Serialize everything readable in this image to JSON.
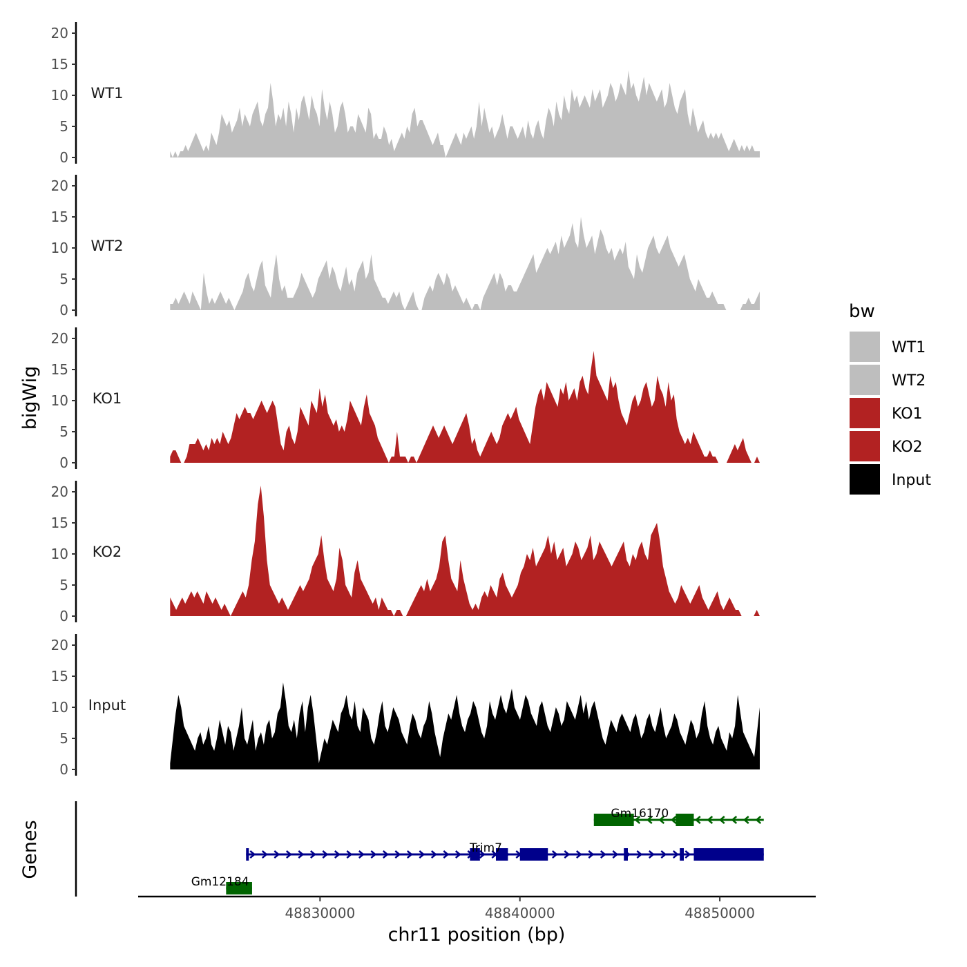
{
  "chart_data": {
    "type": "area",
    "title": "",
    "xlabel": "chr11 position (bp)",
    "ylabel": "bigWig",
    "genes_panel_label": "Genes",
    "x_range_bp": [
      48822500,
      48852000
    ],
    "xlim": [
      48820900,
      48854800
    ],
    "ylim": [
      0,
      21
    ],
    "y_ticks": [
      "0",
      "5",
      "10",
      "15",
      "20"
    ],
    "x_ticks": [
      {
        "value": 48830000,
        "label": "48830000"
      },
      {
        "value": 48840000,
        "label": "48840000"
      },
      {
        "value": 48850000,
        "label": "48850000"
      }
    ],
    "legend": {
      "title": "bw",
      "position": "right",
      "entries": [
        {
          "label": "WT1",
          "color": "#bebebe"
        },
        {
          "label": "WT2",
          "color": "#bebebe"
        },
        {
          "label": "KO1",
          "color": "#b22222"
        },
        {
          "label": "KO2",
          "color": "#b22222"
        },
        {
          "label": "Input",
          "color": "#000000"
        }
      ]
    },
    "series": [
      {
        "name": "WT1",
        "color": "#bebebe",
        "values": [
          1,
          0,
          1,
          0,
          1,
          1,
          2,
          1,
          2,
          3,
          4,
          3,
          2,
          1,
          2,
          1,
          4,
          3,
          2,
          4,
          7,
          6,
          5,
          6,
          4,
          5,
          6,
          8,
          5,
          7,
          6,
          5,
          7,
          8,
          9,
          6,
          5,
          7,
          8,
          12,
          9,
          5,
          7,
          6,
          8,
          5,
          9,
          7,
          4,
          8,
          6,
          9,
          10,
          8,
          6,
          10,
          8,
          7,
          5,
          11,
          8,
          6,
          9,
          7,
          4,
          5,
          8,
          9,
          7,
          4,
          5,
          5,
          4,
          7,
          6,
          5,
          4,
          8,
          7,
          3,
          4,
          3,
          3,
          5,
          4,
          2,
          3,
          1,
          2,
          3,
          4,
          3,
          5,
          4,
          7,
          8,
          5,
          6,
          6,
          5,
          4,
          3,
          2,
          3,
          4,
          2,
          2,
          0,
          1,
          2,
          3,
          4,
          3,
          2,
          4,
          3,
          4,
          5,
          3,
          5,
          9,
          5,
          8,
          6,
          4,
          5,
          3,
          4,
          5,
          7,
          5,
          3,
          5,
          5,
          4,
          3,
          4,
          5,
          3,
          6,
          4,
          3,
          5,
          6,
          4,
          3,
          6,
          8,
          7,
          5,
          9,
          7,
          6,
          10,
          8,
          7,
          11,
          9,
          10,
          8,
          9,
          10,
          9,
          8,
          11,
          9,
          10,
          11,
          8,
          9,
          10,
          12,
          11,
          9,
          10,
          12,
          11,
          10,
          14,
          11,
          12,
          10,
          9,
          11,
          13,
          10,
          12,
          11,
          10,
          9,
          10,
          11,
          8,
          9,
          12,
          10,
          8,
          7,
          9,
          10,
          11,
          7,
          5,
          8,
          6,
          4,
          5,
          6,
          4,
          3,
          4,
          3,
          4,
          3,
          4,
          3,
          2,
          1,
          2,
          3,
          2,
          1,
          2,
          1,
          2,
          1,
          2,
          1,
          1,
          1
        ]
      },
      {
        "name": "WT2",
        "color": "#bebebe",
        "values": [
          1,
          1,
          2,
          1,
          2,
          3,
          2,
          1,
          3,
          2,
          1,
          0,
          6,
          3,
          1,
          2,
          1,
          2,
          3,
          2,
          1,
          2,
          1,
          0,
          1,
          2,
          3,
          5,
          6,
          4,
          3,
          5,
          7,
          8,
          4,
          3,
          2,
          6,
          9,
          5,
          3,
          4,
          2,
          2,
          2,
          3,
          4,
          6,
          5,
          4,
          3,
          2,
          3,
          5,
          6,
          7,
          8,
          5,
          7,
          6,
          4,
          3,
          5,
          7,
          4,
          5,
          3,
          6,
          7,
          8,
          5,
          6,
          9,
          5,
          4,
          3,
          2,
          2,
          1,
          2,
          3,
          2,
          3,
          1,
          0,
          1,
          2,
          3,
          1,
          0,
          0,
          2,
          3,
          4,
          3,
          5,
          6,
          5,
          4,
          6,
          5,
          3,
          4,
          3,
          2,
          1,
          2,
          1,
          0,
          1,
          1,
          0,
          2,
          3,
          4,
          5,
          6,
          4,
          6,
          5,
          3,
          4,
          4,
          3,
          3,
          4,
          5,
          6,
          7,
          8,
          9,
          6,
          7,
          8,
          9,
          10,
          9,
          10,
          11,
          9,
          12,
          10,
          11,
          12,
          14,
          11,
          10,
          15,
          12,
          10,
          11,
          12,
          9,
          11,
          13,
          12,
          10,
          9,
          10,
          8,
          9,
          10,
          9,
          11,
          7,
          6,
          5,
          9,
          7,
          6,
          8,
          10,
          11,
          12,
          10,
          9,
          10,
          11,
          12,
          10,
          9,
          8,
          7,
          8,
          9,
          7,
          5,
          4,
          3,
          5,
          4,
          3,
          2,
          2,
          3,
          2,
          1,
          1,
          1,
          0,
          0,
          0,
          0,
          0,
          0,
          1,
          1,
          2,
          1,
          1,
          2,
          3
        ]
      },
      {
        "name": "KO1",
        "color": "#b22222",
        "values": [
          1,
          2,
          2,
          1,
          0,
          0,
          1,
          3,
          3,
          3,
          4,
          3,
          2,
          3,
          2,
          4,
          3,
          4,
          3,
          5,
          4,
          3,
          4,
          6,
          8,
          7,
          8,
          9,
          8,
          8,
          7,
          8,
          9,
          10,
          9,
          8,
          9,
          10,
          9,
          6,
          3,
          2,
          5,
          6,
          4,
          3,
          5,
          9,
          8,
          7,
          6,
          10,
          9,
          8,
          12,
          9,
          11,
          8,
          7,
          6,
          7,
          5,
          6,
          5,
          7,
          10,
          9,
          8,
          7,
          6,
          9,
          11,
          8,
          7,
          6,
          4,
          3,
          2,
          1,
          0,
          1,
          1,
          5,
          1,
          1,
          1,
          0,
          1,
          1,
          0,
          1,
          2,
          3,
          4,
          5,
          6,
          5,
          4,
          5,
          6,
          5,
          4,
          3,
          4,
          5,
          6,
          7,
          8,
          6,
          3,
          4,
          2,
          1,
          2,
          3,
          4,
          5,
          4,
          3,
          4,
          6,
          7,
          8,
          7,
          8,
          9,
          7,
          6,
          5,
          4,
          3,
          6,
          9,
          11,
          12,
          10,
          13,
          12,
          11,
          10,
          9,
          12,
          11,
          13,
          10,
          11,
          12,
          10,
          13,
          14,
          12,
          11,
          15,
          18,
          14,
          13,
          12,
          11,
          10,
          14,
          12,
          13,
          10,
          8,
          7,
          6,
          8,
          10,
          11,
          9,
          10,
          12,
          13,
          11,
          9,
          10,
          14,
          12,
          11,
          9,
          13,
          10,
          11,
          7,
          5,
          4,
          3,
          4,
          3,
          5,
          4,
          3,
          2,
          1,
          1,
          2,
          1,
          1,
          0,
          0,
          0,
          0,
          1,
          2,
          3,
          2,
          3,
          4,
          2,
          1,
          0,
          0,
          1,
          0
        ]
      },
      {
        "name": "KO2",
        "color": "#b22222",
        "values": [
          3,
          2,
          1,
          2,
          3,
          2,
          3,
          4,
          3,
          4,
          3,
          2,
          4,
          3,
          2,
          3,
          2,
          1,
          2,
          1,
          0,
          1,
          2,
          3,
          4,
          3,
          5,
          9,
          12,
          18,
          21,
          16,
          9,
          5,
          4,
          3,
          2,
          3,
          2,
          1,
          2,
          3,
          4,
          5,
          4,
          5,
          6,
          8,
          9,
          10,
          13,
          9,
          6,
          5,
          4,
          6,
          11,
          9,
          5,
          4,
          3,
          7,
          9,
          6,
          5,
          4,
          3,
          2,
          3,
          1,
          3,
          2,
          1,
          1,
          0,
          1,
          1,
          0,
          0,
          1,
          2,
          3,
          4,
          5,
          4,
          6,
          4,
          5,
          6,
          8,
          12,
          13,
          9,
          6,
          5,
          4,
          9,
          6,
          4,
          2,
          1,
          2,
          1,
          3,
          4,
          3,
          5,
          4,
          3,
          6,
          7,
          5,
          4,
          3,
          4,
          5,
          7,
          8,
          10,
          9,
          11,
          8,
          9,
          10,
          11,
          13,
          10,
          12,
          9,
          10,
          11,
          8,
          9,
          10,
          12,
          11,
          9,
          10,
          11,
          13,
          9,
          10,
          12,
          11,
          10,
          9,
          8,
          9,
          10,
          11,
          12,
          9,
          8,
          10,
          9,
          11,
          12,
          10,
          9,
          13,
          14,
          15,
          12,
          8,
          6,
          4,
          3,
          2,
          3,
          5,
          4,
          3,
          2,
          3,
          4,
          5,
          3,
          2,
          1,
          2,
          3,
          4,
          2,
          1,
          2,
          3,
          2,
          1,
          1,
          0,
          0,
          0,
          0,
          0,
          1,
          0
        ]
      },
      {
        "name": "Input",
        "color": "#000000",
        "values": [
          1,
          5,
          9,
          12,
          10,
          7,
          6,
          5,
          4,
          3,
          5,
          6,
          4,
          5,
          7,
          4,
          3,
          5,
          8,
          6,
          4,
          7,
          6,
          3,
          5,
          7,
          10,
          5,
          4,
          6,
          8,
          3,
          5,
          6,
          4,
          7,
          8,
          5,
          6,
          9,
          10,
          14,
          11,
          7,
          6,
          8,
          5,
          9,
          11,
          6,
          10,
          12,
          9,
          5,
          1,
          3,
          5,
          4,
          6,
          8,
          7,
          6,
          9,
          10,
          12,
          9,
          8,
          11,
          7,
          6,
          10,
          9,
          8,
          5,
          4,
          6,
          9,
          11,
          7,
          6,
          8,
          10,
          9,
          8,
          6,
          5,
          4,
          7,
          9,
          8,
          6,
          5,
          7,
          8,
          11,
          9,
          6,
          4,
          2,
          5,
          7,
          9,
          8,
          10,
          12,
          9,
          7,
          6,
          8,
          9,
          11,
          10,
          8,
          6,
          5,
          7,
          11,
          9,
          8,
          10,
          12,
          10,
          9,
          11,
          13,
          10,
          9,
          8,
          10,
          12,
          11,
          9,
          8,
          7,
          10,
          11,
          9,
          7,
          6,
          8,
          10,
          9,
          7,
          8,
          11,
          10,
          9,
          8,
          10,
          12,
          9,
          11,
          8,
          10,
          11,
          9,
          7,
          5,
          4,
          6,
          8,
          7,
          6,
          8,
          9,
          8,
          7,
          6,
          8,
          9,
          7,
          5,
          6,
          8,
          9,
          7,
          6,
          8,
          10,
          7,
          5,
          6,
          7,
          9,
          8,
          6,
          5,
          4,
          6,
          8,
          7,
          5,
          6,
          9,
          11,
          7,
          5,
          4,
          6,
          7,
          5,
          4,
          3,
          6,
          5,
          7,
          12,
          9,
          6,
          5,
          4,
          3,
          2,
          6,
          10
        ]
      }
    ],
    "genes": [
      {
        "name": "Gm16170",
        "strand": "-",
        "start": 48843700,
        "end": 48852200,
        "color": "#006400",
        "exons": [
          [
            48843700,
            48845700
          ],
          [
            48847800,
            48848700
          ]
        ],
        "label_at": 48846000,
        "row": 0
      },
      {
        "name": "Trim7",
        "strand": "+",
        "start": 48826300,
        "end": 48852200,
        "color": "#00008b",
        "exons": [
          [
            48826300,
            48826350
          ],
          [
            48837500,
            48838000
          ],
          [
            48838800,
            48839400
          ],
          [
            48840000,
            48841400
          ],
          [
            48845200,
            48845400
          ],
          [
            48848000,
            48848200
          ],
          [
            48848700,
            48852200
          ]
        ],
        "label_at": 48838300,
        "row": 1
      },
      {
        "name": "Gm12184",
        "strand": "+",
        "start": 48825300,
        "end": 48826600,
        "color": "#006400",
        "exons": [
          [
            48825300,
            48826600
          ]
        ],
        "label_at": 48825000,
        "row": 2
      }
    ]
  }
}
